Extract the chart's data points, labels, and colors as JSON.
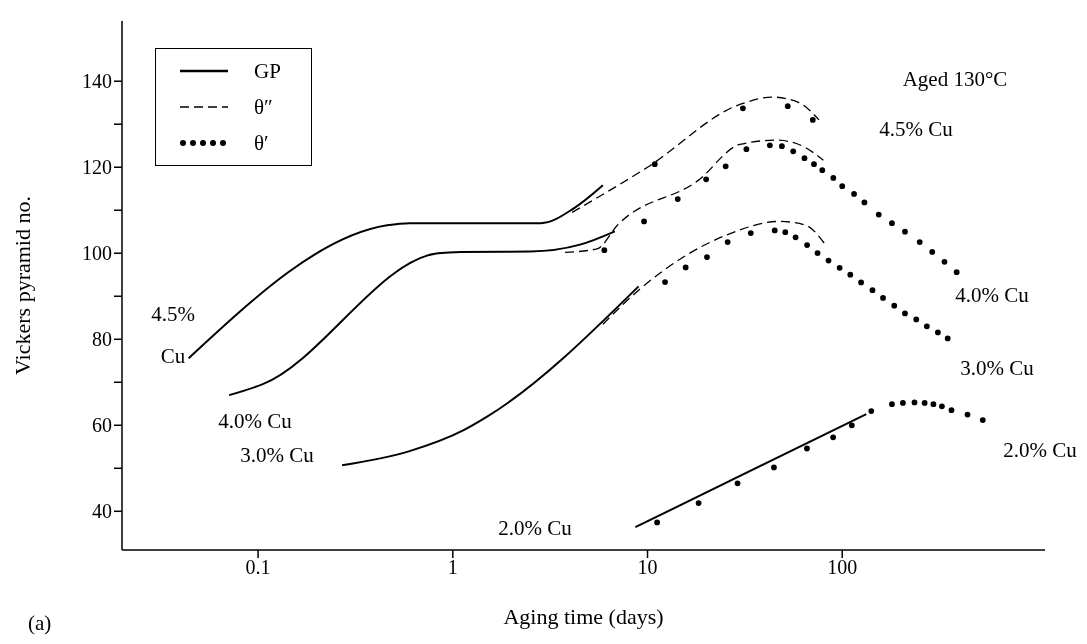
{
  "chart_data": {
    "type": "line",
    "xlabel": "Aging time (days)",
    "ylabel": "Vickers pyramid no.",
    "log": "x",
    "xlim": [
      0.02,
      1100
    ],
    "xticks": [
      0.1,
      1,
      10,
      100
    ],
    "ylim": [
      31,
      154
    ],
    "yticks": [
      40,
      {
        "value": 50,
        "label": null
      },
      60,
      {
        "value": 70,
        "label": null
      },
      80,
      {
        "value": 90,
        "label": null
      },
      100,
      {
        "value": 110,
        "label": null
      },
      120,
      {
        "value": 130,
        "label": null
      },
      140
    ],
    "grid": false,
    "legend": "top left",
    "series": [
      {
        "name": "GP",
        "line_style": "solid",
        "color": "#000000",
        "x": [
          0.044,
          0.46,
          0.6,
          2.84,
          4.2,
          5.9
        ],
        "values": [
          75.6,
          106.5,
          107,
          107,
          110.5,
          115.8
        ]
      },
      {
        "line_style": "solid",
        "color": "#000000",
        "x": [
          0.071,
          0.105,
          0.84,
          1.1,
          2.5,
          4.5,
          6.8
        ],
        "values": [
          67,
          69.5,
          100,
          100.3,
          100.4,
          102,
          105.1
        ]
      },
      {
        "line_style": "solid",
        "color": "#000000",
        "x": [
          0.27,
          0.6,
          1.13,
          1.5,
          9
        ],
        "values": [
          50.7,
          54,
          58.8,
          62,
          92.3
        ]
      },
      {
        "line_style": "solid",
        "color": "#000000",
        "x": [
          8.66,
          133
        ],
        "values": [
          36.3,
          62.6
        ]
      },
      {
        "name": "θ″",
        "line_style": "dashed",
        "color": "#000000",
        "x": [
          4.1,
          10,
          29.8,
          44,
          60,
          76
        ],
        "values": [
          109.5,
          120,
          134.6,
          136.3,
          135,
          131
        ]
      },
      {
        "line_style": "dashed",
        "color": "#000000",
        "x": [
          3.77,
          5.5,
          7,
          18.3,
          29.8,
          46,
          62,
          80
        ],
        "values": [
          100.2,
          101,
          106.5,
          117,
          125.3,
          126.3,
          125,
          121.6
        ]
      },
      {
        "line_style": "dashed",
        "color": "#000000",
        "x": [
          5.9,
          9,
          26,
          47.7,
          65,
          81
        ],
        "values": [
          83.5,
          91.4,
          104.4,
          107.4,
          106.5,
          102.3
        ]
      },
      {
        "name": "θ′",
        "type": "scatter",
        "marker": "circle",
        "color": "#000000",
        "x": [
          10.9,
          30.9,
          52.5,
          70.6
        ],
        "values": [
          120.7,
          133.7,
          134.2,
          131
        ]
      },
      {
        "type": "scatter",
        "marker": "circle",
        "color": "#000000",
        "x": [
          6,
          9.6,
          14.3,
          20,
          25.2,
          32.2,
          42.5,
          49,
          56,
          64,
          71.6,
          79,
          90,
          100,
          115,
          130,
          154,
          180,
          210,
          250,
          290,
          335,
          387
        ],
        "values": [
          100.7,
          107.4,
          112.6,
          117.2,
          120.2,
          124.2,
          125.1,
          124.9,
          123.7,
          122.1,
          120.7,
          119.3,
          117.5,
          115.6,
          113.8,
          111.8,
          109,
          107,
          105,
          102.6,
          100.3,
          98,
          95.6
        ]
      },
      {
        "type": "scatter",
        "marker": "circle",
        "color": "#000000",
        "x": [
          12.3,
          15.7,
          20.2,
          25.8,
          33.9,
          45,
          51,
          57.6,
          66,
          74.7,
          85,
          97,
          110,
          125,
          143,
          162,
          185,
          210,
          240,
          272,
          310,
          348
        ],
        "values": [
          93.3,
          96.7,
          99.1,
          102.6,
          104.7,
          105.3,
          104.9,
          103.7,
          101.9,
          100,
          98.3,
          96.6,
          95,
          93.2,
          91.4,
          89.6,
          87.8,
          86,
          84.6,
          83,
          81.6,
          80.2
        ]
      },
      {
        "type": "scatter",
        "marker": "circle",
        "color": "#000000",
        "x": [
          11.2,
          18.3,
          29,
          44.6,
          65.9,
          89.8,
          112,
          141,
          180,
          205,
          235,
          265,
          294,
          325,
          364,
          440,
          527
        ],
        "values": [
          37.4,
          41.9,
          46.5,
          50.2,
          54.6,
          57.2,
          60,
          63.3,
          64.9,
          65.2,
          65.3,
          65.2,
          64.9,
          64.4,
          63.5,
          62.5,
          61.2
        ]
      }
    ],
    "annotations": [
      "Aged 130°C",
      "4.5% Cu",
      "4.0% Cu",
      "3.0% Cu",
      "2.0% Cu",
      "4.5%\nCu",
      "4.0% Cu",
      "3.0% Cu",
      "2.0% Cu",
      "(a)"
    ]
  }
}
